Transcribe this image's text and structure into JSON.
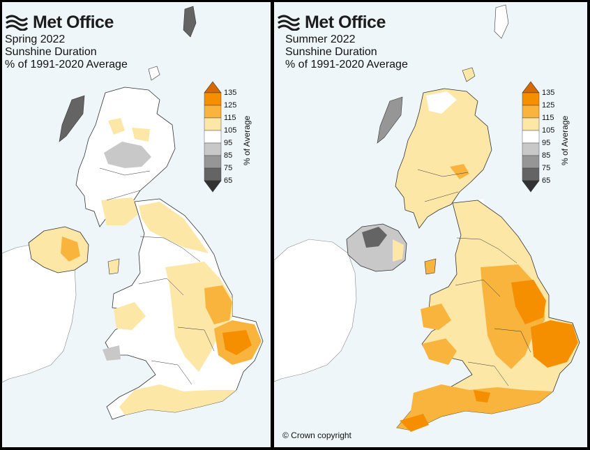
{
  "brand": "Met Office",
  "panels": [
    {
      "title": "Spring 2022",
      "subtitle": "Sunshine Duration",
      "caption": "% of 1991-2020 Average"
    },
    {
      "title": "Summer 2022",
      "subtitle": "Sunshine Duration",
      "caption": "% of 1991-2020 Average"
    }
  ],
  "legend": {
    "axis_label": "% of Average",
    "ticks": [
      "135",
      "125",
      "115",
      "105",
      "95",
      "85",
      "75",
      "65"
    ],
    "bins": [
      {
        "range": "125-135",
        "color": "#f58f00"
      },
      {
        "range": "115-125",
        "color": "#f9b43e"
      },
      {
        "range": "105-115",
        "color": "#fde7a6"
      },
      {
        "range": "95-105",
        "color": "#ffffff"
      },
      {
        "range": "85-95",
        "color": "#c8c8c8"
      },
      {
        "range": "75-85",
        "color": "#969696"
      },
      {
        "range": "65-75",
        "color": "#646464"
      }
    ],
    "over_color": "#d46a00",
    "under_color": "#323232"
  },
  "copyright": "© Crown copyright"
}
